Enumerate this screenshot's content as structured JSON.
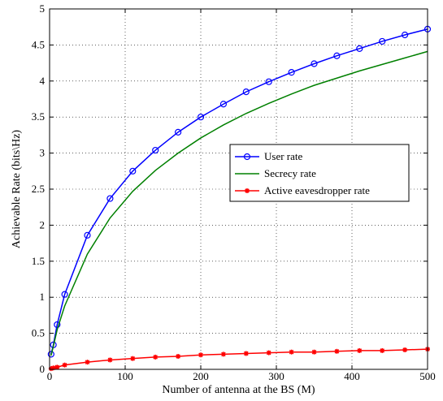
{
  "chart_data": {
    "type": "line",
    "xlabel": "Number of antenna at the BS (M)",
    "ylabel": "Achievable Rate (bits\\Hz)",
    "xlim": [
      0,
      500
    ],
    "ylim": [
      0,
      5
    ],
    "xticks": [
      "0",
      "100",
      "200",
      "300",
      "400",
      "500"
    ],
    "yticks": [
      "0",
      "0.5",
      "1",
      "1.5",
      "2",
      "2.5",
      "3",
      "3.5",
      "4",
      "4.5",
      "5"
    ],
    "grid": true,
    "legend_position": "center-right",
    "series": [
      {
        "name": "User rate",
        "color": "#0000ff",
        "marker": "circle",
        "x": [
          2,
          5,
          10,
          20,
          50,
          80,
          110,
          140,
          170,
          200,
          230,
          260,
          290,
          320,
          350,
          380,
          410,
          440,
          470,
          500
        ],
        "y": [
          0.21,
          0.34,
          0.62,
          1.04,
          1.86,
          2.37,
          2.75,
          3.04,
          3.29,
          3.5,
          3.68,
          3.85,
          3.99,
          4.12,
          4.24,
          4.35,
          4.45,
          4.55,
          4.64,
          4.72
        ]
      },
      {
        "name": "Secrecy rate",
        "color": "#008000",
        "marker": "none",
        "x": [
          2,
          5,
          10,
          20,
          50,
          80,
          110,
          140,
          170,
          200,
          230,
          260,
          290,
          320,
          350,
          380,
          410,
          440,
          470,
          500
        ],
        "y": [
          0.19,
          0.32,
          0.55,
          0.88,
          1.6,
          2.1,
          2.47,
          2.76,
          3.0,
          3.21,
          3.39,
          3.55,
          3.69,
          3.82,
          3.94,
          4.04,
          4.14,
          4.23,
          4.32,
          4.41
        ]
      },
      {
        "name": "Active eavesdropper rate",
        "color": "#ff0000",
        "marker": "asterisk",
        "x": [
          2,
          5,
          10,
          20,
          50,
          80,
          110,
          140,
          170,
          200,
          230,
          260,
          290,
          320,
          350,
          380,
          410,
          440,
          470,
          500
        ],
        "y": [
          0.01,
          0.02,
          0.03,
          0.06,
          0.1,
          0.13,
          0.15,
          0.17,
          0.18,
          0.2,
          0.21,
          0.22,
          0.23,
          0.24,
          0.24,
          0.25,
          0.26,
          0.26,
          0.27,
          0.28
        ]
      }
    ]
  }
}
